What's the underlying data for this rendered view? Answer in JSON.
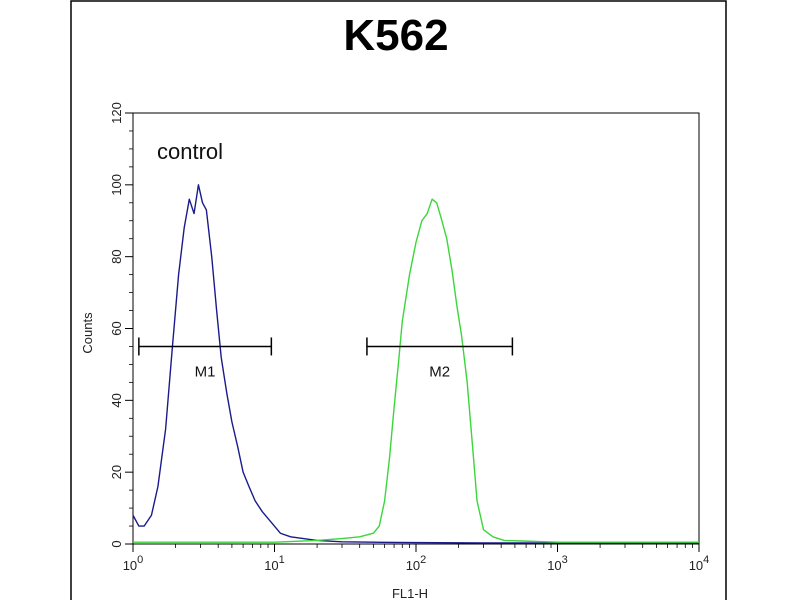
{
  "chart_data": {
    "type": "line",
    "title": "K562",
    "xlabel": "FL1-H",
    "ylabel": "Counts",
    "x_scale": "log",
    "xlim": [
      1,
      10000
    ],
    "ylim": [
      0,
      120
    ],
    "x_ticks": [
      {
        "value": 1,
        "base": "10",
        "exp": "0"
      },
      {
        "value": 10,
        "base": "10",
        "exp": "1"
      },
      {
        "value": 100,
        "base": "10",
        "exp": "2"
      },
      {
        "value": 1000,
        "base": "10",
        "exp": "3"
      },
      {
        "value": 10000,
        "base": "10",
        "exp": "4"
      }
    ],
    "y_ticks": [
      0,
      20,
      40,
      60,
      80,
      100,
      120
    ],
    "grid": false,
    "annotations": {
      "control_label": "control",
      "markers": [
        {
          "label": "M1",
          "x_start": 1.1,
          "x_end": 9.5,
          "y": 55
        },
        {
          "label": "M2",
          "x_start": 45,
          "x_end": 480,
          "y": 55
        }
      ]
    },
    "series": [
      {
        "color": "#1a1a8c",
        "x": [
          1,
          1.1,
          1.2,
          1.35,
          1.5,
          1.7,
          1.9,
          2.1,
          2.3,
          2.5,
          2.7,
          2.9,
          3.1,
          3.3,
          3.6,
          3.9,
          4.2,
          4.6,
          5.0,
          5.5,
          6.0,
          6.6,
          7.3,
          8.2,
          9.5,
          11,
          13,
          16,
          20,
          30,
          50,
          100,
          300,
          1000,
          10000
        ],
        "y": [
          8,
          5,
          5,
          8,
          16,
          32,
          55,
          75,
          88,
          96,
          92,
          100,
          95,
          93,
          80,
          65,
          52,
          42,
          34,
          27,
          20,
          16,
          12,
          9,
          6,
          3,
          2,
          1.5,
          1,
          0.6,
          0.5,
          0.4,
          0.3,
          0.3,
          0.3
        ]
      },
      {
        "color": "#3ad63a",
        "x": [
          1,
          10,
          20,
          30,
          40,
          50,
          55,
          60,
          65,
          70,
          75,
          80,
          90,
          100,
          110,
          120,
          130,
          140,
          150,
          165,
          180,
          195,
          210,
          230,
          250,
          270,
          300,
          350,
          420,
          600,
          1000,
          10000
        ],
        "y": [
          0.5,
          0.5,
          1,
          1.5,
          2,
          3,
          5,
          12,
          24,
          38,
          50,
          62,
          75,
          84,
          90,
          92,
          96,
          95,
          91,
          85,
          76,
          66,
          58,
          45,
          28,
          12,
          4,
          2,
          1,
          0.8,
          0.5,
          0.5
        ]
      }
    ]
  }
}
